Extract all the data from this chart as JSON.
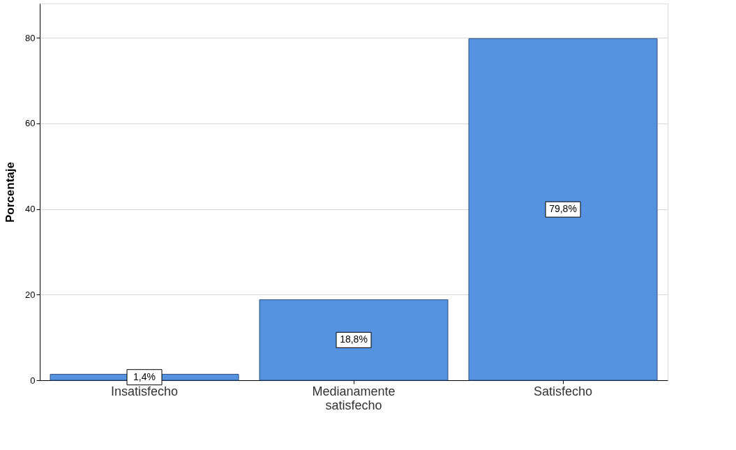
{
  "chart_data": {
    "type": "bar",
    "ylabel": "Porcentaje",
    "categories": [
      "Insatisfecho",
      "Medianamente satisfecho",
      "Satisfecho"
    ],
    "values": [
      1.4,
      18.8,
      79.8
    ],
    "color": "#5592e0",
    "value_labels": [
      "1,4%",
      "18,8%",
      "79,8%"
    ],
    "ylim": [
      0,
      88
    ],
    "yticks": [
      0,
      20,
      40,
      60,
      80
    ],
    "grid": "y"
  }
}
